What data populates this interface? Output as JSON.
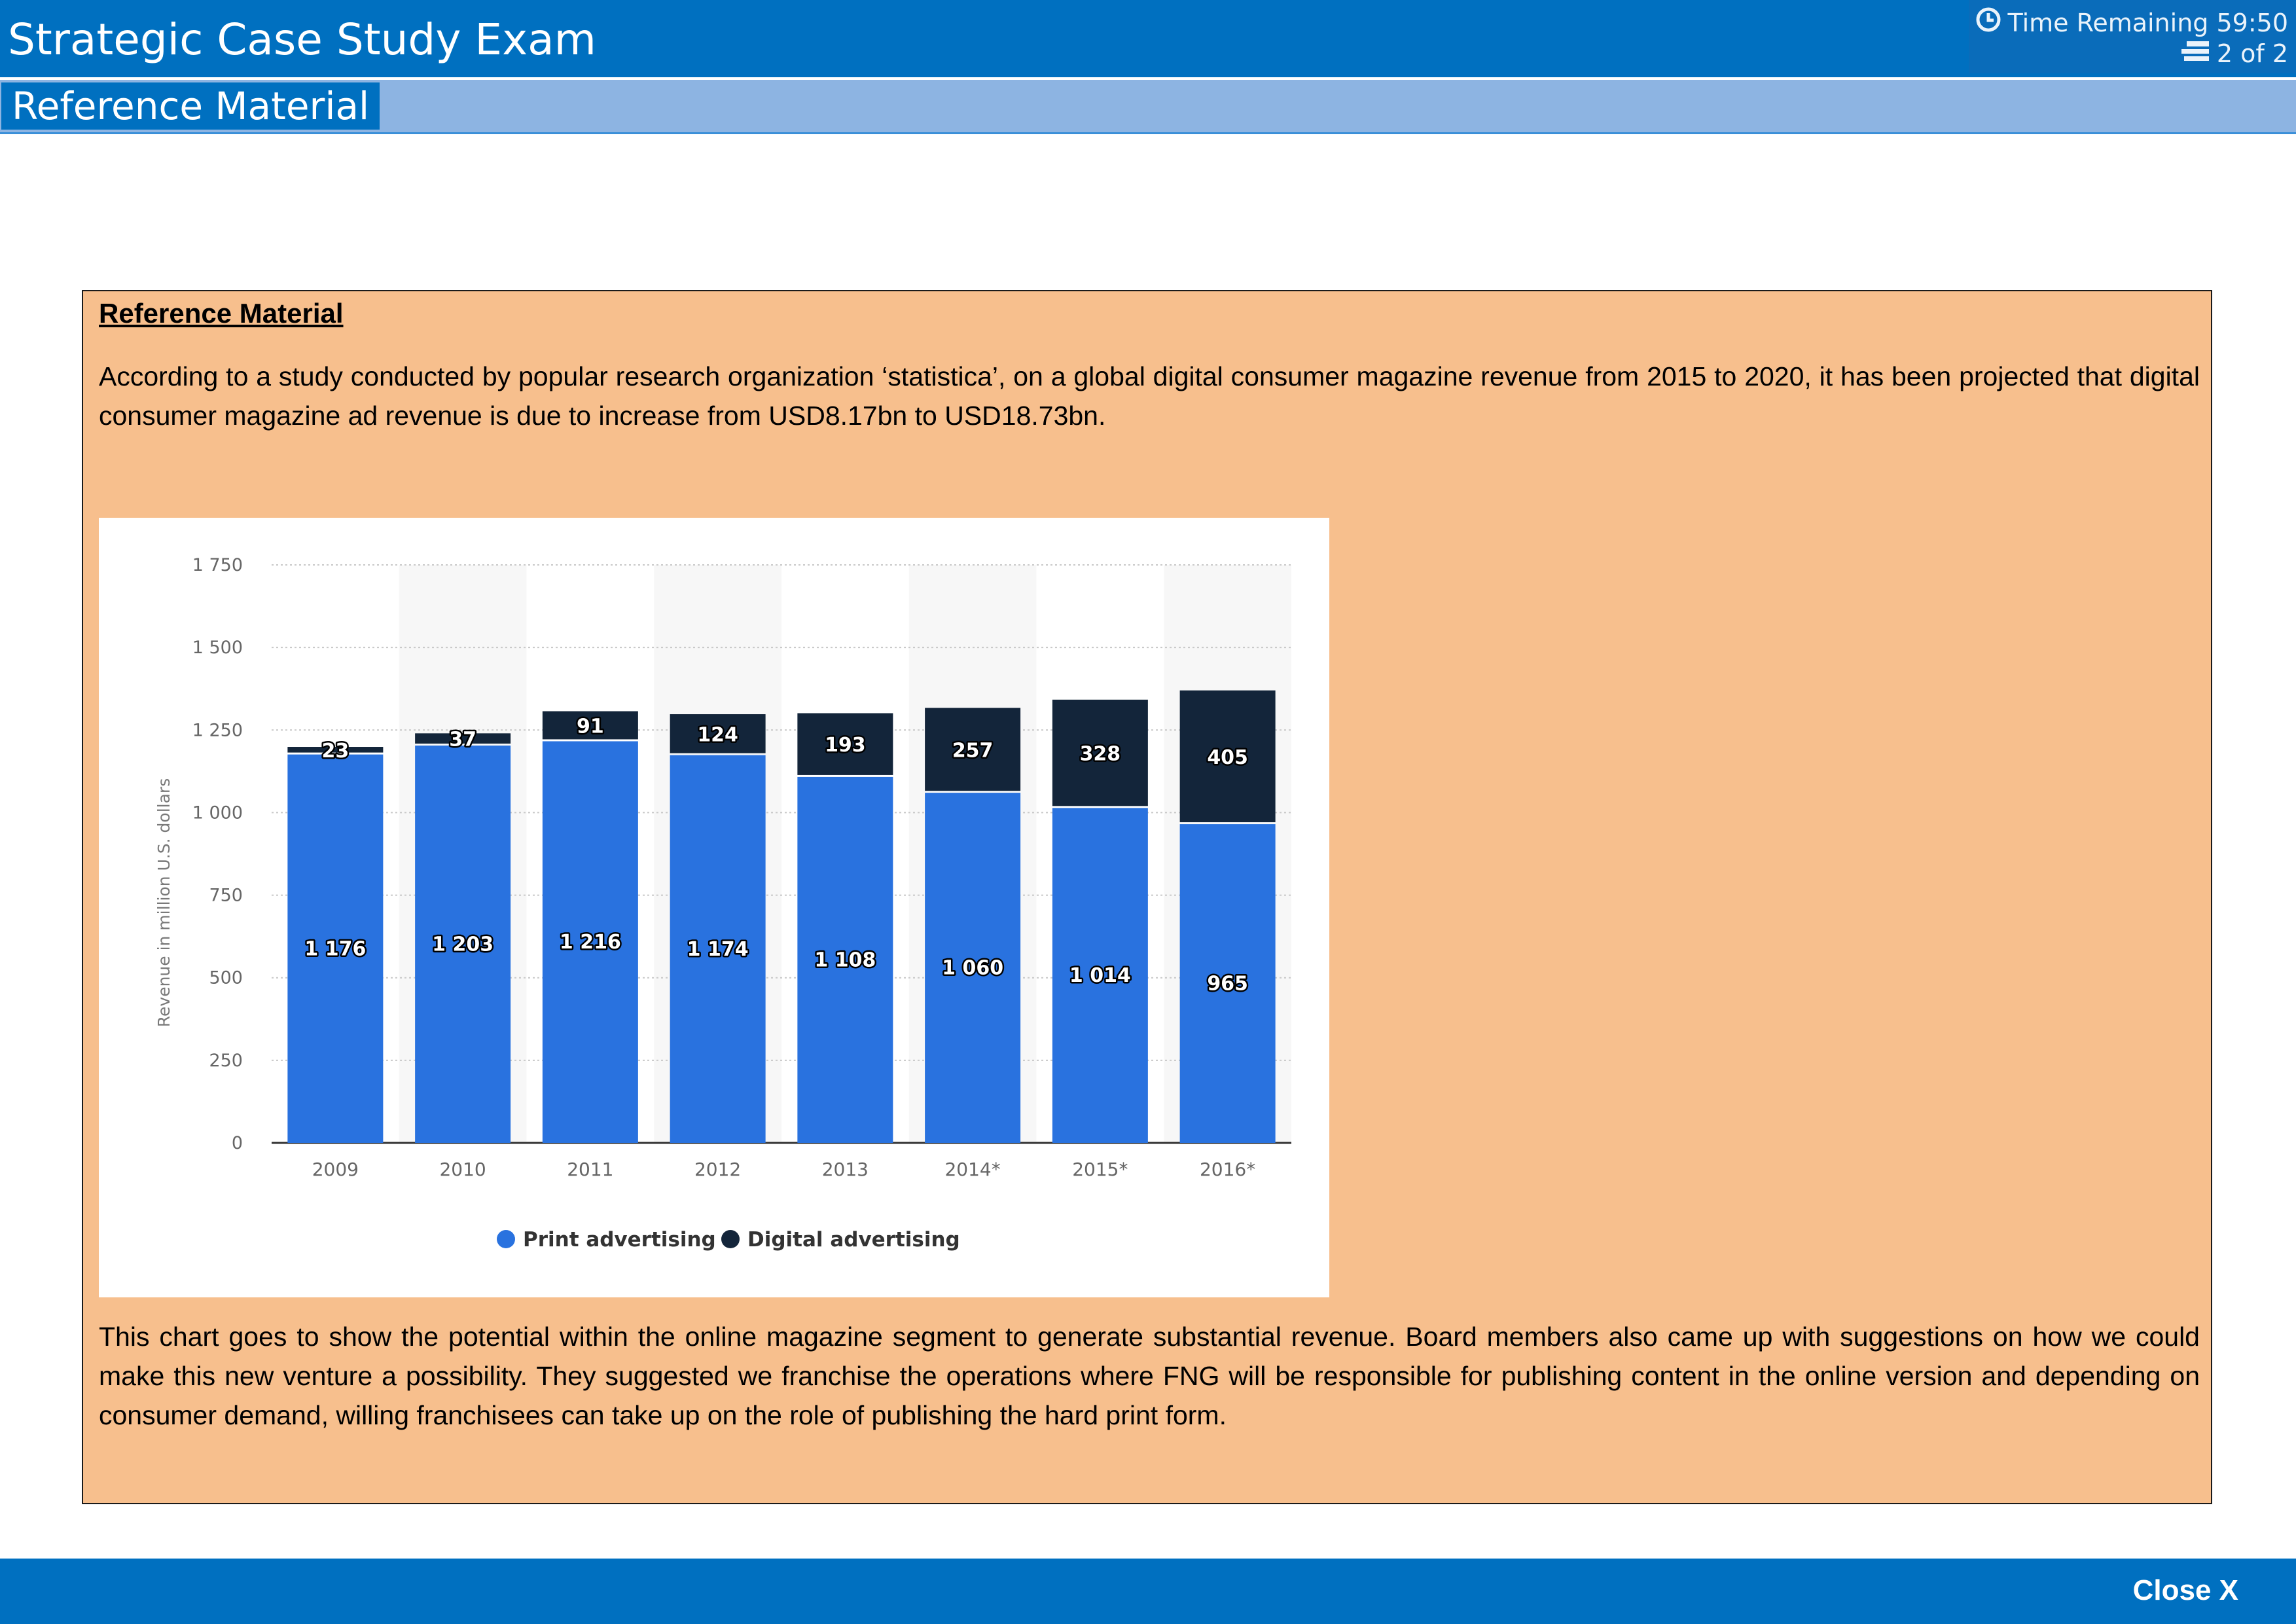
{
  "header": {
    "title": "Strategic Case Study Exam",
    "timer_label": "Time Remaining 59:50",
    "page_indicator": "2 of 2",
    "timer_icon": "clock-icon",
    "pages_icon": "pages-icon"
  },
  "subheader": {
    "tab_label": "Reference Material"
  },
  "panel": {
    "heading": "Reference Material",
    "intro": "According to a study conducted by popular research organization ‘statistica’, on a global digital consumer magazine revenue from 2015 to 2020, it has been projected that digital consumer magazine ad revenue is due to increase from USD8.17bn to USD18.73bn.",
    "outro": "This chart goes to show the potential within the online magazine segment to generate substantial revenue. Board members also came up with suggestions on how we could make this new venture a possibility. They suggested we franchise the operations where FNG will be responsible for publishing content in the online version and depending on consumer demand, willing franchisees can take up on the role of publishing the hard print form."
  },
  "footer": {
    "close_label": "Close X"
  },
  "colors": {
    "header": "#0070C0",
    "subheader": "#8DB4E2",
    "panel": "#F7BF8D",
    "print_series": "#2972DF",
    "digital_series": "#13253A"
  },
  "chart_data": {
    "type": "bar",
    "stacked": true,
    "categories": [
      "2009",
      "2010",
      "2011",
      "2012",
      "2013",
      "2014*",
      "2015*",
      "2016*"
    ],
    "series": [
      {
        "name": "Print advertising",
        "values": [
          1176,
          1203,
          1216,
          1174,
          1108,
          1060,
          1014,
          965
        ],
        "color": "#2972DF"
      },
      {
        "name": "Digital advertising",
        "values": [
          23,
          37,
          91,
          124,
          193,
          257,
          328,
          405
        ],
        "color": "#13253A"
      }
    ],
    "value_labels": {
      "print": [
        "1 176",
        "1 203",
        "1 216",
        "1 174",
        "1 108",
        "1 060",
        "1 014",
        "965"
      ],
      "digital": [
        "23",
        "37",
        "91",
        "124",
        "193",
        "257",
        "328",
        "405"
      ]
    },
    "ylabel": "Revenue in million U.S. dollars",
    "ylim": [
      0,
      1750
    ],
    "yticks": [
      0,
      250,
      500,
      750,
      1000,
      1250,
      1500,
      1750
    ],
    "ytick_labels": [
      "0",
      "250",
      "500",
      "750",
      "1 000",
      "1 250",
      "1 500",
      "1 750"
    ],
    "grid": true,
    "legend_position": "bottom-center"
  }
}
